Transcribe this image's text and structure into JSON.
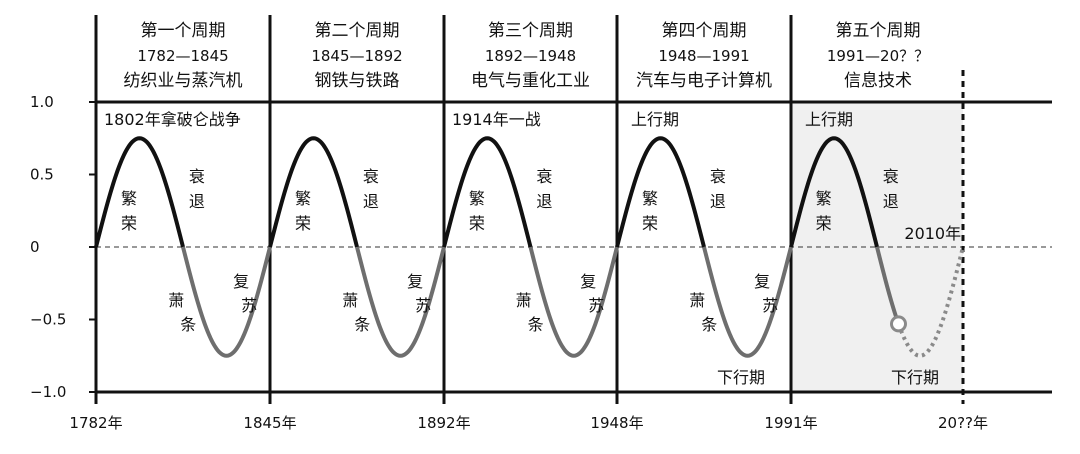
{
  "chart_data": {
    "type": "line",
    "ylim": [
      -1.0,
      1.0
    ],
    "y_ticks": [
      {
        "value": 1.0,
        "label": "1.0"
      },
      {
        "value": 0.5,
        "label": "0.5"
      },
      {
        "value": 0,
        "label": "0"
      },
      {
        "value": -0.5,
        "label": "−0.5"
      },
      {
        "value": -1.0,
        "label": "−1.0"
      }
    ],
    "x_ticks": [
      {
        "value": 1782,
        "label": "1782年"
      },
      {
        "value": 1845,
        "label": "1845年"
      },
      {
        "value": 1892,
        "label": "1892年"
      },
      {
        "value": 1948,
        "label": "1948年"
      },
      {
        "value": 1991,
        "label": "1991年"
      },
      {
        "value": 2045,
        "label": "20??年"
      }
    ],
    "amplitude": 0.75,
    "zero_line": "dashed",
    "highlight_year": 2010,
    "cycles": [
      {
        "name": "第一个周期",
        "years": "1782—1845",
        "theme": "纺织业与蒸汽机",
        "start": 1782,
        "end": 1845,
        "event": "1802年拿破仑战争",
        "boom": "繁荣",
        "recession": "衰退",
        "depression": "萧条",
        "recovery": "复苏"
      },
      {
        "name": "第二个周期",
        "years": "1845—1892",
        "theme": "钢铁与铁路",
        "start": 1845,
        "end": 1892,
        "boom": "繁荣",
        "recession": "衰退",
        "depression": "萧条",
        "recovery": "复苏"
      },
      {
        "name": "第三个周期",
        "years": "1892—1948",
        "theme": "电气与重化工业",
        "start": 1892,
        "end": 1948,
        "event": "1914年一战",
        "boom": "繁荣",
        "recession": "衰退",
        "depression": "萧条",
        "recovery": "复苏"
      },
      {
        "name": "第四个周期",
        "years": "1948—1991",
        "theme": "汽车与电子计算机",
        "start": 1948,
        "end": 1991,
        "upswing": "上行期",
        "downswing": "下行期",
        "boom": "繁荣",
        "recession": "衰退",
        "depression": "萧条",
        "recovery": "复苏"
      },
      {
        "name": "第五个周期",
        "years": "1991—20？？",
        "theme": "信息技术",
        "start": 1991,
        "end": 2045,
        "upswing": "上行期",
        "downswing": "下行期",
        "boom": "繁荣",
        "recession": "衰退",
        "marker": "2010年"
      }
    ]
  },
  "colors": {
    "line_up": "#111111",
    "line_down": "#6e6e6e",
    "projection": "#8a8a8a",
    "shaded_bg": "#f0f0f0",
    "axis": "#111111"
  }
}
